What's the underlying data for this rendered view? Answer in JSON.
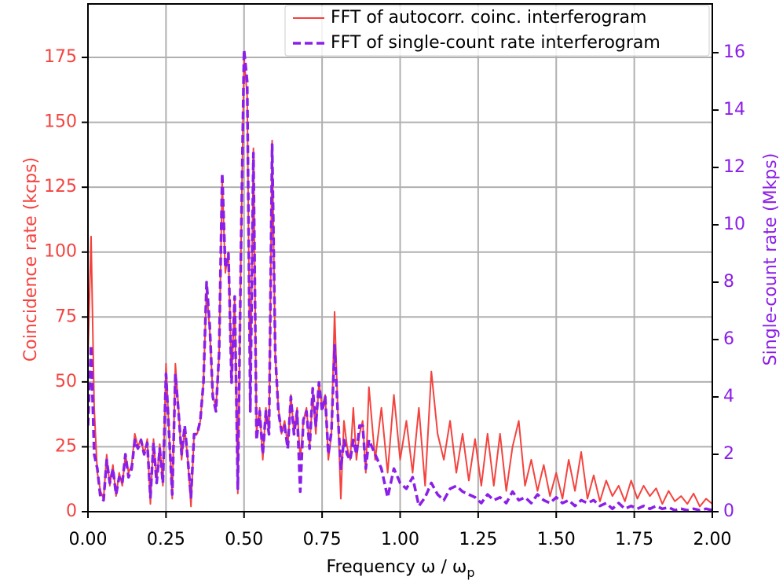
{
  "chart_data": {
    "type": "line",
    "xlabel": "Frequency ω / ω",
    "xlabel_subscript": "p",
    "ylabel": "Coincidence rate (kcps)",
    "y2label": "Single-count rate (Mkps)",
    "xlim": [
      0,
      2
    ],
    "ylim": [
      0,
      195.6
    ],
    "y2lim": [
      0,
      17.7
    ],
    "xticks": [
      {
        "value": 0,
        "label": "0.00"
      },
      {
        "value": 0.25,
        "label": "0.25"
      },
      {
        "value": 0.5,
        "label": "0.50"
      },
      {
        "value": 0.75,
        "label": "0.75"
      },
      {
        "value": 1,
        "label": "1.00"
      },
      {
        "value": 1.25,
        "label": "1.25"
      },
      {
        "value": 1.5,
        "label": "1.50"
      },
      {
        "value": 1.75,
        "label": "1.75"
      },
      {
        "value": 2,
        "label": "2.00"
      }
    ],
    "yticks": [
      0,
      25,
      50,
      75,
      100,
      125,
      150,
      175
    ],
    "y2ticks": [
      0,
      2,
      4,
      6,
      8,
      10,
      12,
      14,
      16
    ],
    "grid": true,
    "legend": "upper right",
    "x": [
      0,
      0.01,
      0.02,
      0.03,
      0.04,
      0.05,
      0.06,
      0.07,
      0.08,
      0.09,
      0.1,
      0.11,
      0.12,
      0.13,
      0.14,
      0.15,
      0.16,
      0.17,
      0.18,
      0.19,
      0.2,
      0.21,
      0.22,
      0.23,
      0.24,
      0.25,
      0.26,
      0.27,
      0.28,
      0.29,
      0.3,
      0.31,
      0.32,
      0.33,
      0.34,
      0.35,
      0.36,
      0.37,
      0.38,
      0.39,
      0.4,
      0.41,
      0.42,
      0.43,
      0.44,
      0.45,
      0.46,
      0.47,
      0.48,
      0.49,
      0.5,
      0.51,
      0.52,
      0.53,
      0.54,
      0.55,
      0.56,
      0.57,
      0.58,
      0.59,
      0.6,
      0.61,
      0.62,
      0.63,
      0.64,
      0.65,
      0.66,
      0.67,
      0.68,
      0.69,
      0.7,
      0.71,
      0.72,
      0.73,
      0.74,
      0.75,
      0.76,
      0.77,
      0.78,
      0.79,
      0.8,
      0.81,
      0.82,
      0.83,
      0.84,
      0.85,
      0.86,
      0.87,
      0.88,
      0.89,
      0.9,
      0.92,
      0.94,
      0.96,
      0.98,
      1,
      1.02,
      1.04,
      1.06,
      1.08,
      1.1,
      1.12,
      1.14,
      1.16,
      1.18,
      1.2,
      1.22,
      1.24,
      1.26,
      1.28,
      1.3,
      1.32,
      1.34,
      1.36,
      1.38,
      1.4,
      1.42,
      1.44,
      1.46,
      1.48,
      1.5,
      1.52,
      1.54,
      1.56,
      1.58,
      1.6,
      1.62,
      1.64,
      1.66,
      1.68,
      1.7,
      1.72,
      1.74,
      1.76,
      1.78,
      1.8,
      1.82,
      1.84,
      1.86,
      1.88,
      1.9,
      1.92,
      1.94,
      1.96,
      1.98,
      2
    ],
    "series": [
      {
        "name": "FFT of autocorr. coinc. interferogram",
        "color": "#f4433f",
        "style": "solid",
        "values": [
          60,
          106,
          40,
          15,
          8,
          5,
          22,
          10,
          18,
          6,
          15,
          10,
          22,
          15,
          18,
          30,
          25,
          28,
          22,
          28,
          3,
          28,
          12,
          26,
          10,
          57,
          30,
          5,
          57,
          40,
          20,
          32,
          20,
          2,
          30,
          30,
          35,
          50,
          86,
          70,
          45,
          40,
          60,
          128,
          92,
          100,
          50,
          82,
          7,
          100,
          175,
          160,
          40,
          140,
          30,
          40,
          20,
          40,
          30,
          143,
          60,
          40,
          30,
          35,
          25,
          45,
          30,
          40,
          20,
          35,
          40,
          25,
          45,
          30,
          50,
          40,
          45,
          20,
          30,
          77,
          40,
          5,
          35,
          25,
          20,
          40,
          20,
          30,
          35,
          15,
          48,
          20,
          40,
          15,
          45,
          20,
          35,
          15,
          40,
          10,
          54,
          30,
          20,
          35,
          15,
          30,
          12,
          28,
          10,
          30,
          10,
          30,
          8,
          25,
          35,
          10,
          20,
          8,
          18,
          6,
          15,
          5,
          20,
          8,
          23,
          5,
          14,
          4,
          12,
          6,
          10,
          4,
          12,
          5,
          10,
          6,
          9,
          3,
          8,
          4,
          6,
          3,
          7,
          2,
          5,
          3
        ]
      },
      {
        "name": "FFT of single-count rate interferogram",
        "color": "#8b1ee8",
        "style": "dashed",
        "axis": "y2",
        "values": [
          3,
          5.8,
          2,
          1.5,
          0.5,
          0.4,
          1.8,
          1,
          1.5,
          0.6,
          1.2,
          1,
          2,
          1.2,
          1.5,
          2.5,
          2.2,
          2.5,
          2,
          2.4,
          0.5,
          2.4,
          1,
          2.2,
          1,
          4.8,
          2.7,
          0.6,
          4.8,
          3.5,
          2,
          3,
          1.8,
          0.5,
          2.7,
          2.7,
          3.2,
          4.5,
          8,
          6.5,
          4,
          3.5,
          5.5,
          11.8,
          8.5,
          9,
          4.5,
          7.5,
          0.8,
          9,
          16.1,
          15,
          3.5,
          12.5,
          2.5,
          3.5,
          2,
          3.5,
          2.7,
          12.8,
          5.5,
          3.5,
          2.8,
          3,
          2.2,
          4,
          2.7,
          3.5,
          0.7,
          3.2,
          3.5,
          2.2,
          4.3,
          3,
          4.5,
          3.5,
          4,
          2,
          2.8,
          5.8,
          3.5,
          1.5,
          2.5,
          2,
          1.8,
          2.5,
          2,
          3,
          3,
          1.5,
          2.5,
          2,
          1.5,
          0.5,
          1.5,
          1,
          0.8,
          1.2,
          0.2,
          0.5,
          1,
          0.6,
          0.4,
          0.8,
          0.9,
          0.7,
          0.6,
          0.5,
          0.3,
          0.6,
          0.4,
          0.5,
          0.3,
          0.7,
          0.4,
          0.5,
          0.3,
          0.6,
          0.4,
          0.3,
          0.5,
          0.3,
          0.4,
          0.2,
          0.4,
          0.3,
          0.4,
          0.2,
          0.3,
          0.1,
          0.3,
          0.1,
          0.2,
          0.1,
          0.2,
          0.1,
          0.2,
          0.1,
          0.15,
          0.05,
          0.1,
          0.05,
          0.1,
          0.05,
          0.1,
          0.05
        ]
      }
    ]
  }
}
